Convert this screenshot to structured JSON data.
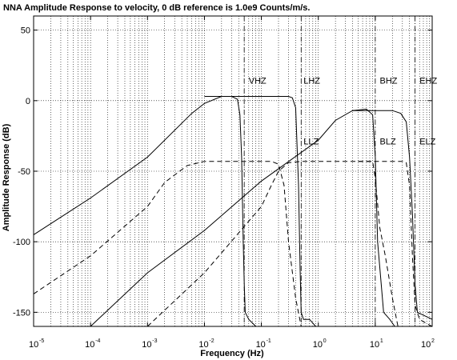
{
  "chart_data": {
    "type": "line",
    "title": "NNA Amplitude Response to velocity, 0 dB reference is 1.0e9 Counts/m/s.",
    "xlabel": "Frequency (Hz)",
    "ylabel": "Amplitude Response (dB)",
    "x_scale": "log",
    "xlim": [
      1e-05,
      100
    ],
    "ylim": [
      -160,
      60
    ],
    "grid": true,
    "x_ticks": [
      {
        "base": "10",
        "exp": "-5",
        "value": 1e-05
      },
      {
        "base": "10",
        "exp": "-4",
        "value": 0.0001
      },
      {
        "base": "10",
        "exp": "-3",
        "value": 0.001
      },
      {
        "base": "10",
        "exp": "-2",
        "value": 0.01
      },
      {
        "base": "10",
        "exp": "-1",
        "value": 0.1
      },
      {
        "base": "10",
        "exp": "0",
        "value": 1
      },
      {
        "base": "10",
        "exp": "1",
        "value": 10
      },
      {
        "base": "10",
        "exp": "2",
        "value": 100
      }
    ],
    "y_ticks": [
      {
        "label": "50",
        "value": 50
      },
      {
        "label": "0",
        "value": 0
      },
      {
        "label": "-50",
        "value": -50
      },
      {
        "label": "-100",
        "value": -100
      },
      {
        "label": "-150",
        "value": -150
      }
    ],
    "nyquist_lines": [
      0.05,
      0.5,
      10,
      50
    ],
    "annotations": [
      {
        "text": "VHZ",
        "x": 0.06,
        "y": 12
      },
      {
        "text": "LHZ",
        "x": 0.55,
        "y": 12
      },
      {
        "text": "BHZ",
        "x": 12,
        "y": 12
      },
      {
        "text": "EHZ",
        "x": 60,
        "y": 12
      },
      {
        "text": "LLZ",
        "x": 0.55,
        "y": -31
      },
      {
        "text": "BLZ",
        "x": 12,
        "y": -31
      },
      {
        "text": "ELZ",
        "x": 60,
        "y": -31
      }
    ],
    "series": [
      {
        "style": "solid",
        "x": [
          1e-05,
          0.0001,
          0.001,
          0.006,
          0.01,
          0.02,
          0.03,
          0.038,
          0.042,
          0.045,
          0.048,
          0.05,
          0.052,
          0.06,
          0.08
        ],
        "y": [
          -95,
          -69,
          -40,
          -9,
          -2,
          3,
          3,
          1,
          -10,
          -40,
          -100,
          -130,
          -150,
          -155,
          -160
        ]
      },
      {
        "style": "solid",
        "x": [
          0.01,
          0.1,
          0.3,
          0.35,
          0.4,
          0.45,
          0.48,
          0.5,
          0.55,
          0.7,
          0.9
        ],
        "y": [
          3,
          3,
          3,
          2,
          -5,
          -60,
          -120,
          -150,
          -155,
          -155,
          -160
        ]
      },
      {
        "style": "solid",
        "x": [
          0.0001,
          0.001,
          0.01,
          0.1,
          1,
          2,
          4,
          7,
          9,
          10,
          11,
          14,
          18,
          22
        ],
        "y": [
          -160,
          -122,
          -92,
          -57,
          -28,
          -14,
          -7,
          -6,
          -10,
          -40,
          -100,
          -150,
          -155,
          -160
        ]
      },
      {
        "style": "solid",
        "x": [
          4,
          10,
          20,
          28,
          35,
          40,
          45,
          50,
          55,
          70,
          100
        ],
        "y": [
          -7,
          -7,
          -7,
          -9,
          -15,
          -40,
          -80,
          -130,
          -150,
          -152,
          -155
        ]
      },
      {
        "style": "dashed",
        "x": [
          1e-05,
          0.0001,
          0.001,
          0.002,
          0.005,
          0.01,
          0.05,
          0.1,
          0.15,
          0.2,
          0.25,
          0.3,
          0.4,
          0.5
        ],
        "y": [
          -137,
          -110,
          -75,
          -58,
          -46,
          -43,
          -43,
          -43,
          -43,
          -45,
          -60,
          -100,
          -140,
          -160
        ]
      },
      {
        "style": "dashed",
        "x": [
          0.001,
          0.01,
          0.1,
          0.15,
          0.2,
          0.3,
          0.5,
          1,
          5,
          9,
          10,
          12,
          15,
          20,
          25
        ],
        "y": [
          -160,
          -122,
          -75,
          -60,
          -50,
          -44,
          -43,
          -43,
          -43,
          -43,
          -55,
          -90,
          -110,
          -140,
          -160
        ]
      },
      {
        "style": "dashed",
        "x": [
          5,
          10,
          20,
          30,
          35,
          40,
          45,
          50,
          60,
          80,
          100
        ],
        "y": [
          -43,
          -43,
          -43,
          -43,
          -44,
          -60,
          -110,
          -145,
          -155,
          -158,
          -160
        ]
      }
    ]
  }
}
